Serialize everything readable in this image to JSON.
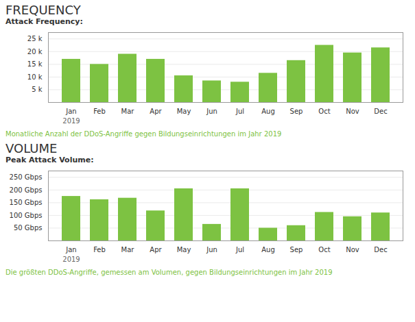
{
  "chart_data": [
    {
      "type": "bar",
      "title": "FREQUENCY",
      "subtitle": "Attack Frequency:",
      "caption": "Monatliche Anzahl der DDoS-Angriffe gegen Bildungseinrichtungen im Jahr 2019",
      "annotations": [
        "2019"
      ],
      "categories": [
        "Jan",
        "Feb",
        "Mar",
        "Apr",
        "May",
        "Jun",
        "Jul",
        "Aug",
        "Sep",
        "Oct",
        "Nov",
        "Dec"
      ],
      "values": [
        17000,
        15000,
        19000,
        17000,
        10500,
        8500,
        8000,
        11500,
        16500,
        22500,
        19500,
        21500
      ],
      "color": "#7DC242",
      "ylim": [
        0,
        27500
      ],
      "yticks": [
        {
          "value": 5000,
          "label": "5 k"
        },
        {
          "value": 10000,
          "label": "10 k"
        },
        {
          "value": 15000,
          "label": "15 k"
        },
        {
          "value": 20000,
          "label": "20 k"
        },
        {
          "value": 25000,
          "label": "25 k"
        }
      ],
      "grid": true
    },
    {
      "type": "bar",
      "title": "VOLUME",
      "subtitle": "Peak Attack Volume:",
      "caption": "Die größten DDoS-Angriffe, gemessen am Volumen, gegen Bildungseinrichtungen im Jahr 2019",
      "annotations": [
        "2019"
      ],
      "categories": [
        "Jan",
        "Feb",
        "Mar",
        "Apr",
        "May",
        "Jun",
        "Jul",
        "Aug",
        "Sep",
        "Oct",
        "Nov",
        "Dec"
      ],
      "values": [
        175,
        162,
        168,
        118,
        205,
        65,
        205,
        50,
        60,
        112,
        95,
        110
      ],
      "color": "#7DC242",
      "ylim": [
        0,
        275
      ],
      "yticks": [
        {
          "value": 50,
          "label": "50 Gbps"
        },
        {
          "value": 100,
          "label": "100 Gbps"
        },
        {
          "value": 150,
          "label": "150 Gbps"
        },
        {
          "value": 200,
          "label": "200 Gbps"
        },
        {
          "value": 250,
          "label": "250 Gbps"
        }
      ],
      "grid": true
    }
  ]
}
